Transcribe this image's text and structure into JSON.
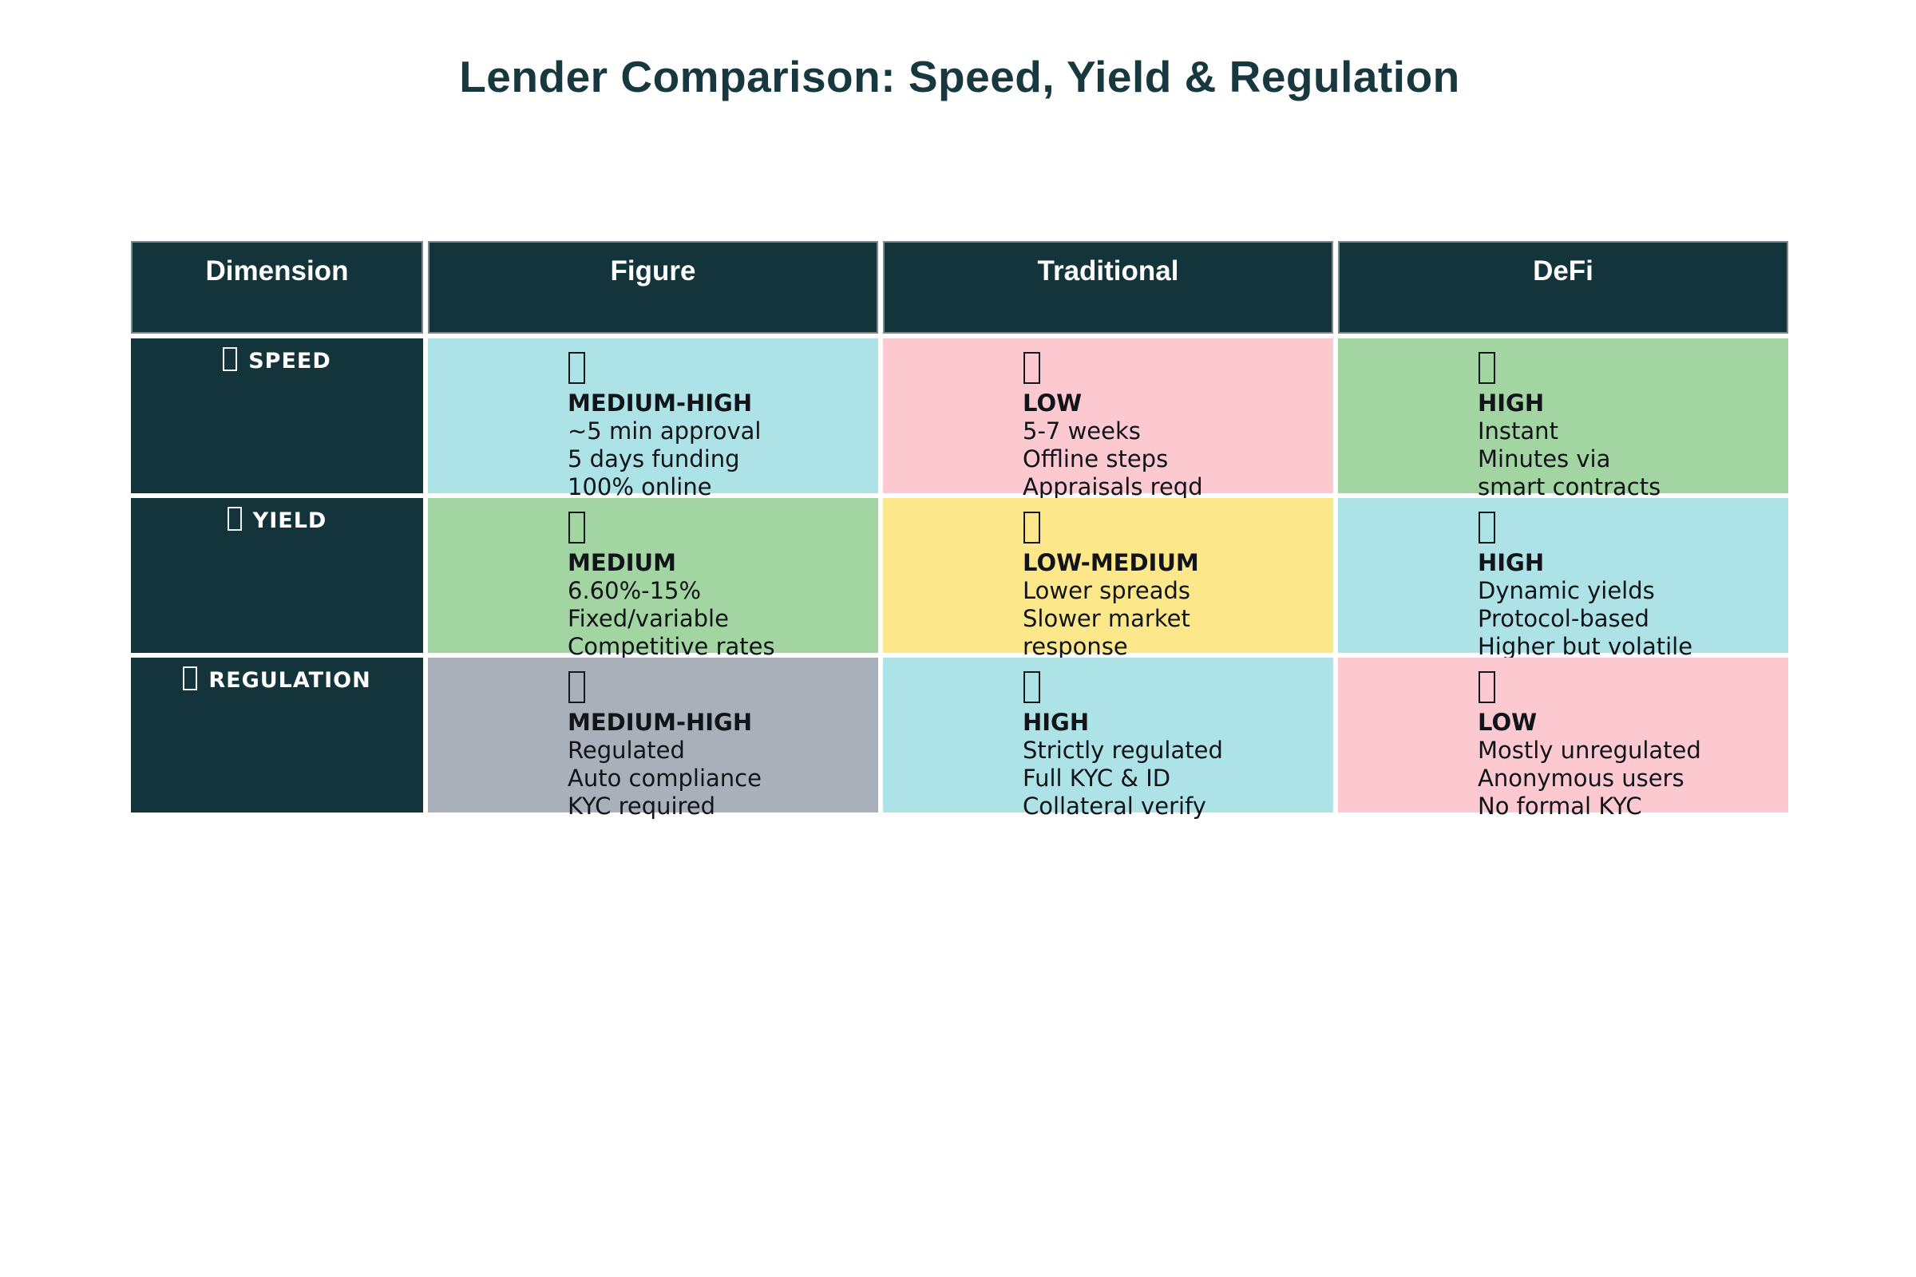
{
  "chart_data": {
    "type": "table",
    "title": "Lender Comparison: Speed, Yield & Regulation",
    "columns": [
      "Dimension",
      "Figure",
      "Traditional",
      "DeFi"
    ],
    "icon_placeholder": "missing-glyph-box",
    "rows": [
      {
        "dimension": "SPEED",
        "cells": [
          {
            "column": "Figure",
            "bg": "cyan",
            "level": "MEDIUM-HIGH",
            "details": [
              "~5 min approval",
              "5 days funding",
              "100% online"
            ]
          },
          {
            "column": "Traditional",
            "bg": "pink",
            "level": "LOW",
            "details": [
              "5-7 weeks",
              "Offline steps",
              "Appraisals reqd"
            ]
          },
          {
            "column": "DeFi",
            "bg": "green",
            "level": "HIGH",
            "details": [
              "Instant",
              "Minutes via",
              "smart contracts"
            ]
          }
        ]
      },
      {
        "dimension": "YIELD",
        "cells": [
          {
            "column": "Figure",
            "bg": "green",
            "level": "MEDIUM",
            "details": [
              "6.60%-15%",
              "Fixed/variable",
              "Competitive rates"
            ]
          },
          {
            "column": "Traditional",
            "bg": "yellow",
            "level": "LOW-MEDIUM",
            "details": [
              "Lower spreads",
              "Slower market",
              "response"
            ]
          },
          {
            "column": "DeFi",
            "bg": "cyan",
            "level": "HIGH",
            "details": [
              "Dynamic yields",
              "Protocol-based",
              "Higher but volatile"
            ]
          }
        ]
      },
      {
        "dimension": "REGULATION",
        "cells": [
          {
            "column": "Figure",
            "bg": "gray",
            "level": "MEDIUM-HIGH",
            "details": [
              "Regulated",
              "Auto compliance",
              "KYC required"
            ]
          },
          {
            "column": "Traditional",
            "bg": "cyan",
            "level": "HIGH",
            "details": [
              "Strictly regulated",
              "Full KYC & ID",
              "Collateral verify"
            ]
          },
          {
            "column": "DeFi",
            "bg": "pink",
            "level": "LOW",
            "details": [
              "Mostly unregulated",
              "Anonymous users",
              "No formal KYC"
            ]
          }
        ]
      }
    ]
  },
  "colors": {
    "header_bg": "#14343B",
    "header_text": "#FFFFFF",
    "header_border": "#78888D",
    "title_text": "#17383E",
    "cell_text": "#111418",
    "cyan": "#ADE2E7",
    "pink": "#FCC9D1",
    "green": "#A2D5A2",
    "yellow": "#FCE78B",
    "gray": "#A9B0BA",
    "page_bg": "#FFFFFF"
  }
}
